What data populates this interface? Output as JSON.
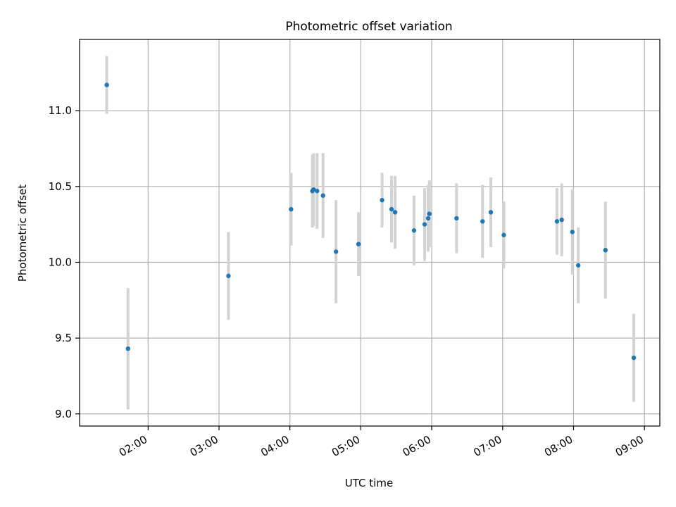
{
  "chart_data": {
    "type": "scatter",
    "title": "Photometric offset variation",
    "xlabel": "UTC time",
    "ylabel": "Photometric offset",
    "x_unit": "time (HH:MM)",
    "xlim": [
      "01:02",
      "09:13"
    ],
    "ylim": [
      8.92,
      11.47
    ],
    "x_ticks": [
      "02:00",
      "03:00",
      "04:00",
      "05:00",
      "06:00",
      "07:00",
      "08:00",
      "09:00"
    ],
    "y_ticks": [
      "9.0",
      "9.5",
      "10.0",
      "10.5",
      "11.0"
    ],
    "grid": true,
    "colors": {
      "points": "#1f77b4",
      "errorbars": "#d3d3d3",
      "grid": "#b0b0b0"
    },
    "points": [
      {
        "x": "01:25",
        "y": 11.17,
        "err": 0.19
      },
      {
        "x": "01:43",
        "y": 9.43,
        "err": 0.4
      },
      {
        "x": "03:08",
        "y": 9.91,
        "err": 0.29
      },
      {
        "x": "04:01",
        "y": 10.35,
        "err": 0.24
      },
      {
        "x": "04:19",
        "y": 10.47,
        "err": 0.24
      },
      {
        "x": "04:20",
        "y": 10.48,
        "err": 0.24
      },
      {
        "x": "04:23",
        "y": 10.47,
        "err": 0.25
      },
      {
        "x": "04:28",
        "y": 10.44,
        "err": 0.28
      },
      {
        "x": "04:39",
        "y": 10.07,
        "err": 0.34
      },
      {
        "x": "04:58",
        "y": 10.12,
        "err": 0.21
      },
      {
        "x": "05:18",
        "y": 10.41,
        "err": 0.18
      },
      {
        "x": "05:26",
        "y": 10.35,
        "err": 0.22
      },
      {
        "x": "05:29",
        "y": 10.33,
        "err": 0.24
      },
      {
        "x": "05:45",
        "y": 10.21,
        "err": 0.23
      },
      {
        "x": "05:54",
        "y": 10.25,
        "err": 0.24
      },
      {
        "x": "05:57",
        "y": 10.29,
        "err": 0.22
      },
      {
        "x": "05:58",
        "y": 10.32,
        "err": 0.22
      },
      {
        "x": "06:21",
        "y": 10.29,
        "err": 0.23
      },
      {
        "x": "06:43",
        "y": 10.27,
        "err": 0.24
      },
      {
        "x": "06:50",
        "y": 10.33,
        "err": 0.23
      },
      {
        "x": "07:01",
        "y": 10.18,
        "err": 0.22
      },
      {
        "x": "07:46",
        "y": 10.27,
        "err": 0.22
      },
      {
        "x": "07:50",
        "y": 10.28,
        "err": 0.24
      },
      {
        "x": "07:59",
        "y": 10.2,
        "err": 0.28
      },
      {
        "x": "08:04",
        "y": 9.98,
        "err": 0.25
      },
      {
        "x": "08:27",
        "y": 10.08,
        "err": 0.32
      },
      {
        "x": "08:51",
        "y": 9.37,
        "err": 0.29
      }
    ]
  }
}
